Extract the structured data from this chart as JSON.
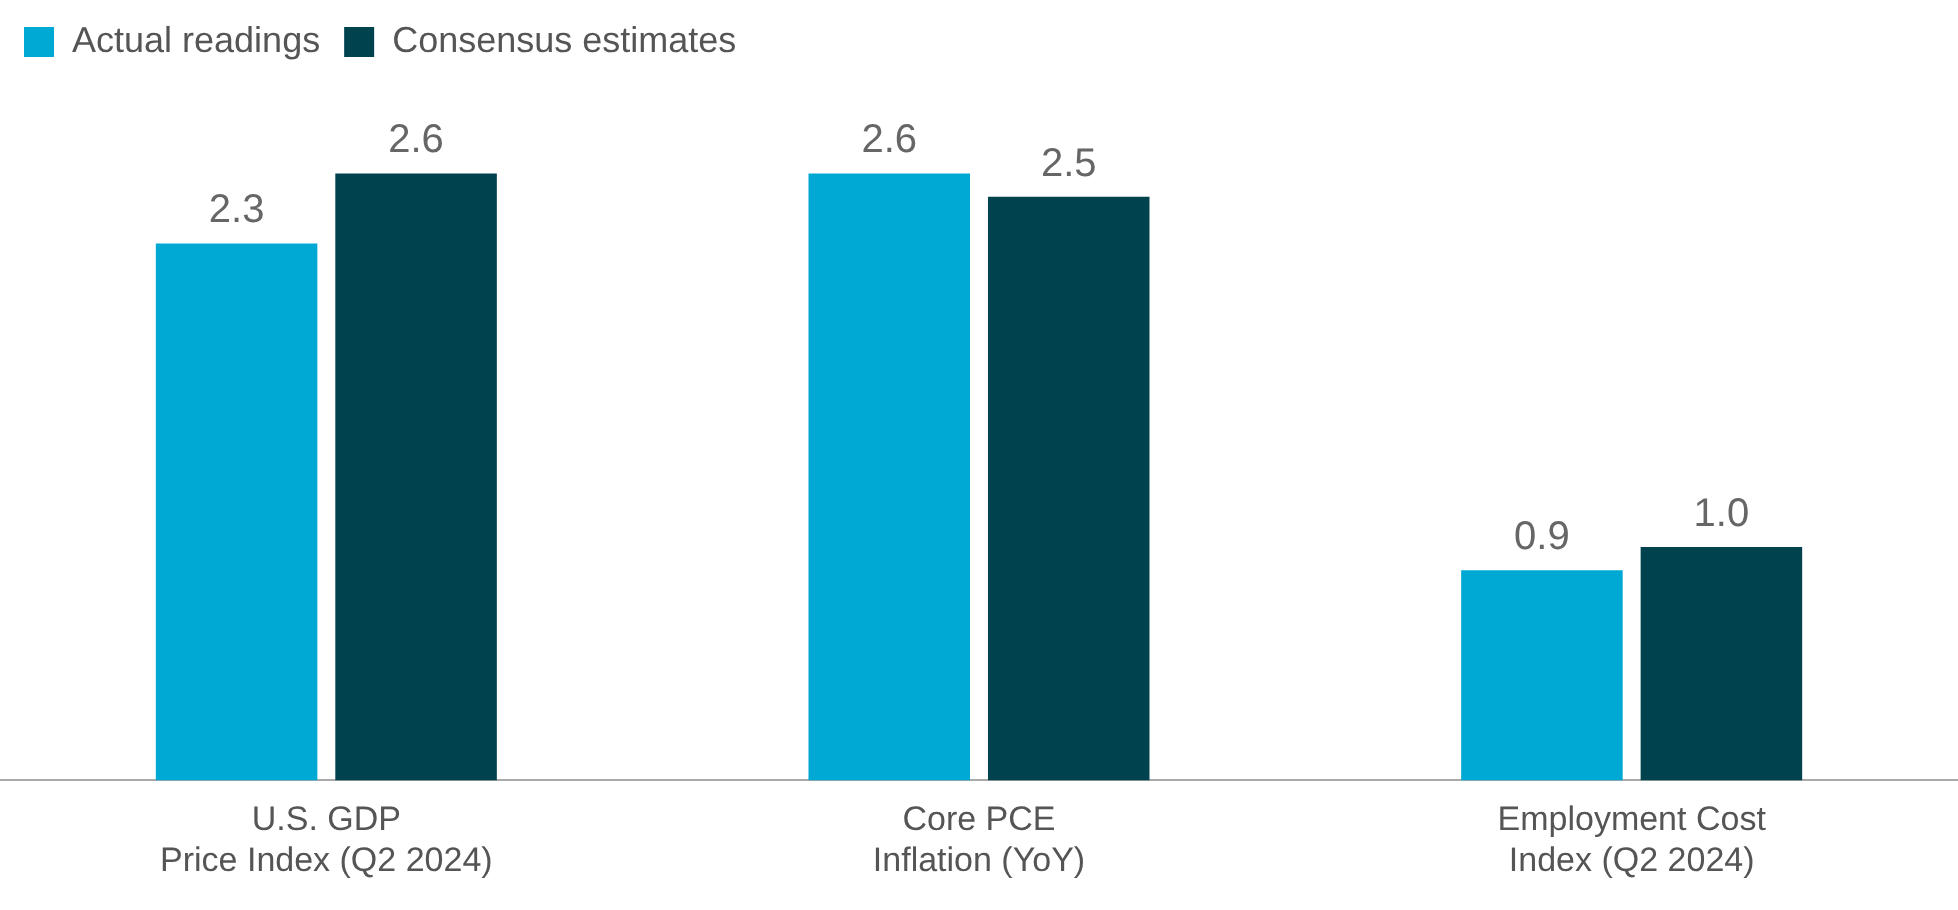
{
  "chart_data": {
    "type": "bar",
    "categories": [
      "U.S. GDP\nPrice Index (Q2 2024)",
      "Core PCE\nInflation (YoY)",
      "Employment Cost\nIndex (Q2 2024)"
    ],
    "series": [
      {
        "name": "Actual readings",
        "color": "#00a9d4",
        "values": [
          2.3,
          2.6,
          0.9
        ],
        "value_labels": [
          "2.3",
          "2.6",
          "0.9"
        ]
      },
      {
        "name": "Consensus estimates",
        "color": "#00434f",
        "values": [
          2.6,
          2.5,
          1.0
        ],
        "value_labels": [
          "2.6",
          "2.5",
          "1.0"
        ]
      }
    ],
    "tick_labels": "x",
    "grid": false,
    "legend": "top left"
  }
}
